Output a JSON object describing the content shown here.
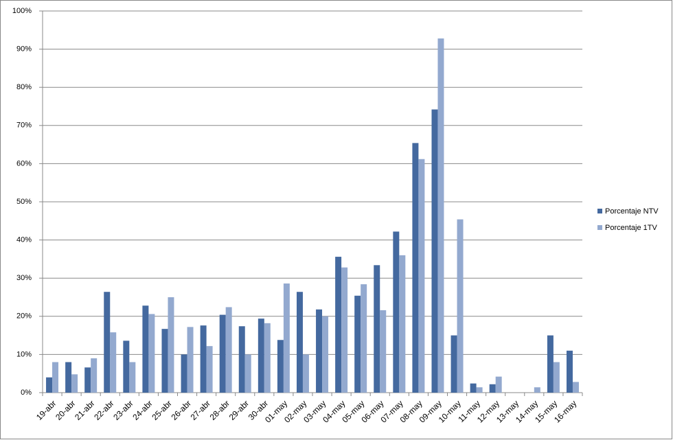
{
  "chart_data": {
    "type": "bar",
    "categories": [
      "19-abr",
      "20-abr",
      "21-abr",
      "22-abr",
      "23-abr",
      "24-abr",
      "25-abr",
      "26-abr",
      "27-abr",
      "28-abr",
      "29-abr",
      "30-abr",
      "01-may",
      "02-may",
      "03-may",
      "04-may",
      "05-may",
      "06-may",
      "07-may",
      "08-may",
      "09-may",
      "10-may",
      "11-may",
      "12-may",
      "13-may",
      "14-may",
      "15-may",
      "16-may"
    ],
    "series": [
      {
        "name": "Porcentaje NTV",
        "color": "#44699f",
        "values": [
          4,
          8,
          6.6,
          26.4,
          13.6,
          22.8,
          16.7,
          10,
          17.6,
          20.4,
          17.4,
          19.4,
          13.8,
          26.4,
          21.8,
          35.6,
          25.4,
          33.4,
          42.2,
          65.4,
          74.2,
          15,
          2.4,
          2.2,
          0,
          0,
          15,
          11
        ]
      },
      {
        "name": "Porcentaje 1TV",
        "color": "#93a9cf",
        "values": [
          8,
          4.8,
          9,
          15.8,
          8,
          20.6,
          25,
          17.2,
          12.2,
          22.4,
          10,
          18.2,
          28.6,
          10,
          20,
          32.8,
          28.4,
          21.6,
          36,
          61.2,
          92.8,
          45.4,
          1.4,
          4.2,
          0,
          1.4,
          8,
          2.8
        ]
      }
    ],
    "ylim": [
      0,
      100
    ],
    "yticks": [
      {
        "value": 0,
        "label": "0%"
      },
      {
        "value": 10,
        "label": "10%"
      },
      {
        "value": 20,
        "label": "20%"
      },
      {
        "value": 30,
        "label": "30%"
      },
      {
        "value": 40,
        "label": "40%"
      },
      {
        "value": 50,
        "label": "50%"
      },
      {
        "value": 60,
        "label": "60%"
      },
      {
        "value": 70,
        "label": "70%"
      },
      {
        "value": 80,
        "label": "80%"
      },
      {
        "value": 90,
        "label": "90%"
      },
      {
        "value": 100,
        "label": "100%"
      }
    ],
    "grid": true,
    "legend": "right"
  }
}
